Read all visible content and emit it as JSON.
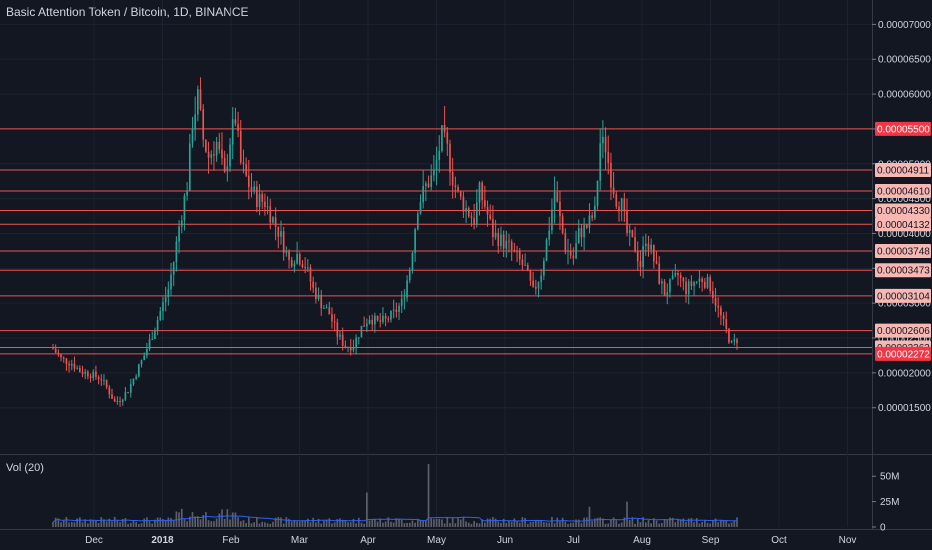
{
  "header": {
    "title": "Basic Attention Token / Bitcoin, 1D, BINANCE"
  },
  "volume_pane": {
    "label": "Vol (20)"
  },
  "colors": {
    "background": "#131722",
    "grid": "#1e2230",
    "up": "#26a69a",
    "down": "#ef5350",
    "volume": "#5d606b",
    "volume_ma": "#2962ff",
    "level_line": "#ef5350",
    "level_label_bg": "#f7b7b2",
    "level_label_bg_strong": "#f23645"
  },
  "chart_data": {
    "type": "candlestick",
    "title": "Basic Attention Token / Bitcoin, 1D, BINANCE",
    "price_axis": {
      "ticks": [
        "0.00007000",
        "0.00006500",
        "0.00006000",
        "0.00005500",
        "0.00005000",
        "0.00004500",
        "0.00004000",
        "0.00003500",
        "0.00003000",
        "0.00002500",
        "0.00002000",
        "0.00001500"
      ],
      "range": [
        8.5e-06,
        7.35e-05
      ]
    },
    "volume_axis": {
      "ticks": [
        "50M",
        "25M",
        "0"
      ],
      "range": [
        0,
        65000000
      ]
    },
    "time_axis": {
      "labels": [
        {
          "text": "Dec",
          "bold": false
        },
        {
          "text": "2018",
          "bold": true
        },
        {
          "text": "Feb",
          "bold": false
        },
        {
          "text": "Mar",
          "bold": false
        },
        {
          "text": "Apr",
          "bold": false
        },
        {
          "text": "May",
          "bold": false
        },
        {
          "text": "Jun",
          "bold": false
        },
        {
          "text": "Jul",
          "bold": false
        },
        {
          "text": "Aug",
          "bold": false
        },
        {
          "text": "Sep",
          "bold": false
        },
        {
          "text": "Oct",
          "bold": false
        },
        {
          "text": "Nov",
          "bold": false
        }
      ]
    },
    "horizontal_levels": [
      {
        "label": "0.00005500",
        "value": 5.5e-05,
        "strong": true
      },
      {
        "label": "0.00004911",
        "value": 4.911e-05,
        "strong": false
      },
      {
        "label": "0.00004610",
        "value": 4.61e-05,
        "strong": false
      },
      {
        "label": "0.00004330",
        "value": 4.33e-05,
        "strong": false
      },
      {
        "label": "0.00004132",
        "value": 4.132e-05,
        "strong": false
      },
      {
        "label": "0.00003748",
        "value": 3.748e-05,
        "strong": false
      },
      {
        "label": "0.00003473",
        "value": 3.473e-05,
        "strong": false
      },
      {
        "label": "0.00003104",
        "value": 3.104e-05,
        "strong": false
      },
      {
        "label": "0.00002606",
        "value": 2.606e-05,
        "strong": false
      },
      {
        "label": "0.00002363",
        "value": 2.363e-05,
        "strong": false
      },
      {
        "label": "0.00002272",
        "value": 2.272e-05,
        "strong": true
      }
    ],
    "price_path_keypoints": [
      [
        0,
        2.35e-05
      ],
      [
        3,
        2.2e-05
      ],
      [
        7,
        2.14e-05
      ],
      [
        10,
        2.03e-05
      ],
      [
        14,
        1.98e-05
      ],
      [
        18,
        1.92e-05
      ],
      [
        21,
        1.72e-05
      ],
      [
        23,
        1.58e-05
      ],
      [
        25,
        1.62e-05
      ],
      [
        28,
        1.75e-05
      ],
      [
        31,
        2e-05
      ],
      [
        34,
        2.25e-05
      ],
      [
        37,
        2.55e-05
      ],
      [
        40,
        2.88e-05
      ],
      [
        43,
        3.2e-05
      ],
      [
        45,
        3.6e-05
      ],
      [
        47,
        4.1e-05
      ],
      [
        50,
        4.7e-05
      ],
      [
        52,
        5.6e-05
      ],
      [
        54,
        5.95e-05
      ],
      [
        56,
        5.35e-05
      ],
      [
        58,
        5.1e-05
      ],
      [
        61,
        5.3e-05
      ],
      [
        64,
        4.8e-05
      ],
      [
        66,
        5.35e-05
      ],
      [
        68,
        5.65e-05
      ],
      [
        70,
        5e-05
      ],
      [
        73,
        4.7e-05
      ],
      [
        76,
        4.5e-05
      ],
      [
        79,
        4.45e-05
      ],
      [
        82,
        4.2e-05
      ],
      [
        85,
        3.95e-05
      ],
      [
        88,
        3.6e-05
      ],
      [
        91,
        3.7e-05
      ],
      [
        94,
        3.55e-05
      ],
      [
        97,
        3.2e-05
      ],
      [
        100,
        3e-05
      ],
      [
        103,
        2.85e-05
      ],
      [
        106,
        2.55e-05
      ],
      [
        109,
        2.38e-05
      ],
      [
        112,
        2.4e-05
      ],
      [
        115,
        2.65e-05
      ],
      [
        118,
        2.8e-05
      ],
      [
        121,
        2.72e-05
      ],
      [
        124,
        2.75e-05
      ],
      [
        127,
        2.85e-05
      ],
      [
        130,
        3e-05
      ],
      [
        133,
        3.5e-05
      ],
      [
        136,
        4.4e-05
      ],
      [
        139,
        4.68e-05
      ],
      [
        142,
        4.85e-05
      ],
      [
        145,
        5.4e-05
      ],
      [
        147,
        5.2e-05
      ],
      [
        149,
        4.8e-05
      ],
      [
        151,
        4.55e-05
      ],
      [
        154,
        4.35e-05
      ],
      [
        157,
        4.2e-05
      ],
      [
        159,
        4.6e-05
      ],
      [
        161,
        4.4e-05
      ],
      [
        164,
        4e-05
      ],
      [
        167,
        3.9e-05
      ],
      [
        170,
        3.8e-05
      ],
      [
        173,
        3.65e-05
      ],
      [
        176,
        3.5e-05
      ],
      [
        179,
        3.15e-05
      ],
      [
        182,
        3.45e-05
      ],
      [
        185,
        4.1e-05
      ],
      [
        187,
        4.6e-05
      ],
      [
        189,
        4.2e-05
      ],
      [
        191,
        3.8e-05
      ],
      [
        194,
        3.65e-05
      ],
      [
        196,
        4e-05
      ],
      [
        199,
        4.1e-05
      ],
      [
        202,
        4.3e-05
      ],
      [
        204,
        5.3e-05
      ],
      [
        206,
        5.25e-05
      ],
      [
        208,
        4.8e-05
      ],
      [
        210,
        4.5e-05
      ],
      [
        212,
        4.4e-05
      ],
      [
        214,
        4e-05
      ],
      [
        217,
        3.8e-05
      ],
      [
        219,
        3.55e-05
      ],
      [
        221,
        3.95e-05
      ],
      [
        223,
        3.75e-05
      ],
      [
        226,
        3.35e-05
      ],
      [
        228,
        3.15e-05
      ],
      [
        230,
        3.25e-05
      ],
      [
        233,
        3.4e-05
      ],
      [
        236,
        3.2e-05
      ],
      [
        239,
        3.3e-05
      ],
      [
        242,
        3.35e-05
      ],
      [
        245,
        3.25e-05
      ],
      [
        248,
        2.9e-05
      ],
      [
        251,
        2.6e-05
      ],
      [
        253,
        2.4e-05
      ],
      [
        255,
        2.48e-05
      ]
    ],
    "volume_spikes": [
      [
        117,
        34000000
      ],
      [
        140,
        62000000
      ],
      [
        200,
        20000000
      ],
      [
        214,
        25000000
      ]
    ]
  }
}
